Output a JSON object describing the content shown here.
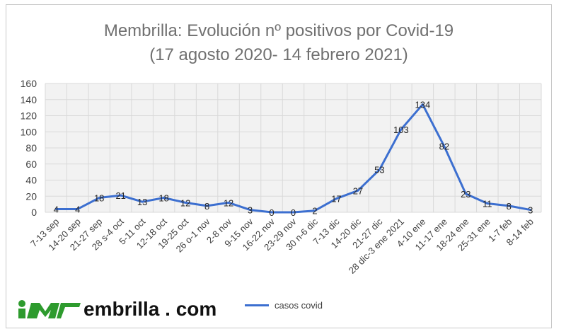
{
  "chart_data": {
    "type": "line",
    "title": "Membrilla: Evolución nº positivos por Covid-19",
    "subtitle": "(17 agosto 2020- 14 febrero 2021)",
    "categories": [
      "7-13 sep",
      "14-20 sep",
      "21-27 sep",
      "28 s-4 oct",
      "5-11 oct",
      "12-18 oct",
      "19-25 oct",
      "26 o-1 nov",
      "2-8 nov",
      "9-15 nov",
      "16-22 nov",
      "23-29 nov",
      "30 n-6 dic",
      "7-13 dic",
      "14-20 dic",
      "21-27 dic",
      "28 dic-3 ene 2021",
      "4-10 ene",
      "11-17 ene",
      "18-24 ene",
      "25-31 ene",
      "1-7 feb",
      "8-14 feb"
    ],
    "series": [
      {
        "name": "casos covid",
        "values": [
          4,
          4,
          18,
          21,
          13,
          18,
          12,
          8,
          12,
          3,
          0,
          0,
          2,
          17,
          27,
          53,
          103,
          134,
          82,
          23,
          11,
          8,
          3
        ]
      }
    ],
    "y_ticks": [
      "0",
      "20",
      "40",
      "60",
      "80",
      "100",
      "120",
      "140",
      "160"
    ],
    "ylim": [
      0,
      160
    ],
    "grid": true,
    "legend_position": "bottom",
    "line_color": "#3c6fd0",
    "grid_color": "#d9d9d9"
  },
  "logo": {
    "text": "embrilla . com",
    "mark_color": "#2e9b2e"
  },
  "legend": {
    "label": "casos covid"
  }
}
